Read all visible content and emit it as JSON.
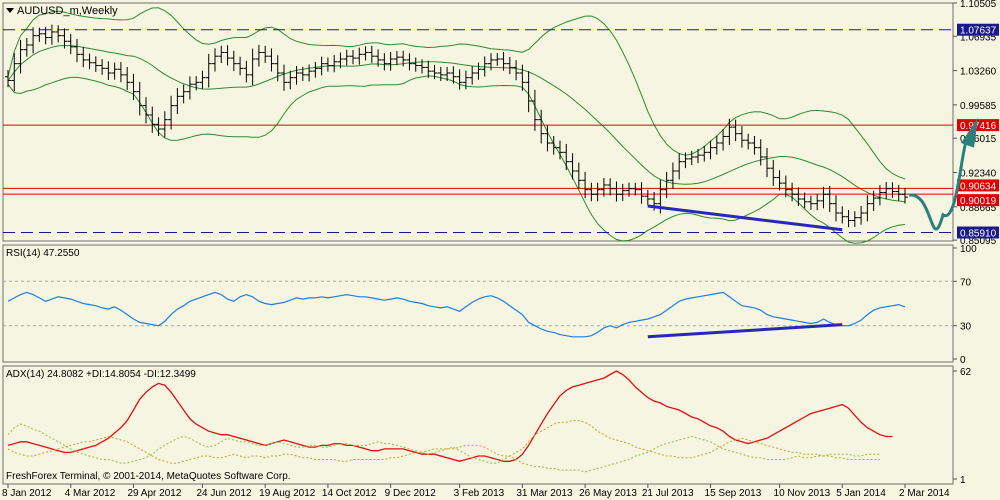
{
  "chart_data": [
    {
      "type": "ohlc",
      "title": "AUDUSD_m,Weekly",
      "symbol": "AUDUSD_m",
      "timeframe": "Weekly",
      "ylim": [
        0.85,
        1.105
      ],
      "y_ticks": [
        "1.10505",
        "1.06935",
        "1.03260",
        "0.99585",
        "0.96015",
        "0.92340",
        "0.88665",
        "0.85095"
      ],
      "x_ticks": [
        "8 Jan 2012",
        "4 Mar 2012",
        "29 Apr 2012",
        "24 Jun 2012",
        "19 Aug 2012",
        "14 Oct 2012",
        "9 Dec 2012",
        "3 Feb 2013",
        "31 Mar 2013",
        "26 May 2013",
        "21 Jul 2013",
        "15 Sep 2013",
        "10 Nov 2013",
        "5 Jan 2014",
        "2 Mar 2014"
      ],
      "levels": [
        {
          "value": 1.07637,
          "label": "1.07637",
          "style": "dashed",
          "color": "#1A1A8C"
        },
        {
          "value": 0.97416,
          "label": "0.97416",
          "style": "solid",
          "color": "#E00000"
        },
        {
          "value": 0.90634,
          "label": "0.90634",
          "style": "solid",
          "color": "#E00000"
        },
        {
          "value": 0.90019,
          "label": "0.90019",
          "style": "solid",
          "color": "#E00000"
        },
        {
          "value": 0.8591,
          "label": "0.85910",
          "style": "dashed",
          "color": "#1A1A8C"
        }
      ],
      "closes": [
        1.022,
        1.04,
        1.055,
        1.06,
        1.07,
        1.072,
        1.068,
        1.074,
        1.07,
        1.064,
        1.058,
        1.05,
        1.044,
        1.041,
        1.038,
        1.035,
        1.03,
        1.034,
        1.028,
        1.02,
        1.01,
        0.995,
        0.985,
        0.975,
        0.97,
        0.98,
        0.995,
        1.005,
        1.01,
        1.018,
        1.02,
        1.025,
        1.04,
        1.048,
        1.052,
        1.046,
        1.04,
        1.035,
        1.028,
        1.045,
        1.052,
        1.048,
        1.04,
        1.03,
        1.02,
        1.025,
        1.03,
        1.028,
        1.032,
        1.035,
        1.04,
        1.038,
        1.042,
        1.045,
        1.048,
        1.046,
        1.05,
        1.052,
        1.048,
        1.044,
        1.04,
        1.045,
        1.047,
        1.044,
        1.04,
        1.038,
        1.036,
        1.032,
        1.03,
        1.028,
        1.03,
        1.026,
        1.02,
        1.025,
        1.03,
        1.034,
        1.04,
        1.044,
        1.045,
        1.04,
        1.036,
        1.03,
        1.02,
        1.0,
        0.98,
        0.965,
        0.955,
        0.95,
        0.945,
        0.935,
        0.925,
        0.915,
        0.905,
        0.9,
        0.905,
        0.91,
        0.906,
        0.9,
        0.904,
        0.906,
        0.905,
        0.898,
        0.895,
        0.89,
        0.905,
        0.915,
        0.925,
        0.935,
        0.938,
        0.94,
        0.942,
        0.945,
        0.95,
        0.955,
        0.962,
        0.972,
        0.965,
        0.958,
        0.955,
        0.95,
        0.94,
        0.928,
        0.918,
        0.912,
        0.905,
        0.9,
        0.895,
        0.892,
        0.89,
        0.893,
        0.9,
        0.89,
        0.88,
        0.876,
        0.872,
        0.875,
        0.88,
        0.89,
        0.896,
        0.902,
        0.906,
        0.903,
        0.9,
        0.897
      ],
      "bollinger": {
        "period_label": "",
        "color": "#2E8B2E"
      },
      "projection": {
        "color": "#2A7F7F",
        "direction": "down-then-up"
      },
      "trendline_price": {
        "from": {
          "x": "21 Jul 2013",
          "y": 0.8875
        },
        "to": {
          "x": "5 Jan 2014",
          "y": 0.862
        },
        "color": "#2828B8"
      }
    },
    {
      "type": "line",
      "title": "RSI(14) 47.2550",
      "ylim": [
        0,
        100
      ],
      "y_ticks": [
        "100",
        "70",
        "30",
        "0"
      ],
      "levels": [
        70,
        30
      ],
      "series": [
        {
          "name": "RSI(14)",
          "color": "#1E7FE0",
          "values": [
            52,
            55,
            58,
            60,
            58,
            55,
            52,
            54,
            56,
            55,
            54,
            52,
            50,
            49,
            48,
            46,
            45,
            47,
            44,
            40,
            36,
            33,
            32,
            31,
            30,
            34,
            40,
            45,
            48,
            52,
            54,
            56,
            58,
            60,
            58,
            54,
            52,
            56,
            58,
            56,
            52,
            50,
            49,
            50,
            51,
            53,
            55,
            54,
            55,
            55,
            56,
            55,
            56,
            57,
            58,
            57,
            56,
            56,
            55,
            54,
            53,
            54,
            55,
            54,
            52,
            51,
            50,
            48,
            47,
            46,
            47,
            45,
            43,
            47,
            51,
            54,
            56,
            57,
            55,
            52,
            48,
            44,
            40,
            33,
            30,
            27,
            25,
            24,
            22,
            21,
            20,
            20,
            20,
            21,
            24,
            28,
            30,
            28,
            31,
            33,
            34,
            35,
            36,
            38,
            40,
            44,
            48,
            52,
            54,
            55,
            56,
            57,
            58,
            59,
            60,
            56,
            52,
            48,
            47,
            46,
            44,
            40,
            38,
            37,
            36,
            35,
            34,
            33,
            32,
            33,
            36,
            33,
            31,
            30,
            30,
            32,
            35,
            40,
            44,
            46,
            47,
            48,
            49,
            47
          ]
        }
      ],
      "trendline": {
        "from": {
          "x": "21 Jul 2013",
          "y": 20
        },
        "to": {
          "x": "5 Jan 2014",
          "y": 31
        },
        "color": "#2828B8"
      }
    },
    {
      "type": "line",
      "title": "ADX(14) 24.8082 +DI:14.8054 -DI:12.3499",
      "ylim": [
        1,
        62
      ],
      "y_ticks": [
        "62",
        "1"
      ],
      "footer": "FreshForex Terminal, © 2001-2014, MetaQuotes Software Corp.",
      "series": [
        {
          "name": "ADX(14)",
          "color": "#E01010",
          "style": "solid",
          "values": [
            20,
            21,
            22,
            22,
            21,
            20,
            19,
            18,
            17,
            16,
            16,
            17,
            18,
            19,
            20,
            22,
            24,
            27,
            30,
            34,
            40,
            46,
            50,
            53,
            55,
            54,
            50,
            45,
            40,
            35,
            32,
            30,
            28,
            27,
            26,
            26,
            25,
            24,
            23,
            22,
            21,
            20,
            21,
            22,
            23,
            22,
            21,
            20,
            19,
            19,
            20,
            20,
            21,
            21,
            20,
            20,
            19,
            18,
            17,
            17,
            18,
            18,
            18,
            18,
            17,
            16,
            15,
            15,
            15,
            14,
            13,
            12,
            11,
            12,
            13,
            14,
            14,
            13,
            12,
            11,
            11,
            12,
            15,
            20,
            26,
            32,
            38,
            43,
            48,
            51,
            53,
            54,
            55,
            56,
            57,
            58,
            60,
            62,
            60,
            57,
            53,
            50,
            47,
            45,
            44,
            42,
            41,
            40,
            38,
            36,
            35,
            33,
            31,
            30,
            28,
            25,
            23,
            22,
            21,
            22,
            23,
            24,
            26,
            28,
            30,
            32,
            34,
            36,
            38,
            39,
            40,
            41,
            42,
            43,
            41,
            37,
            33,
            30,
            28,
            26,
            25,
            25
          ]
        },
        {
          "name": "+DI",
          "color": "#8FBF3F",
          "style": "dotted",
          "values": [
            26,
            30,
            32,
            31,
            29,
            28,
            26,
            24,
            22,
            20,
            18,
            16,
            15,
            14,
            13,
            12,
            12,
            11,
            10,
            10,
            11,
            12,
            13,
            15,
            18,
            20,
            22,
            24,
            25,
            24,
            22,
            20,
            19,
            20,
            22,
            24,
            23,
            22,
            22,
            21,
            20,
            20,
            21,
            22,
            21,
            20,
            19,
            19,
            20,
            20,
            19,
            19,
            20,
            21,
            21,
            20,
            20,
            20,
            21,
            22,
            21,
            21,
            20,
            19,
            18,
            17,
            16,
            15,
            16,
            17,
            18,
            19,
            17,
            15,
            13,
            12,
            11,
            10,
            10,
            12,
            14,
            12,
            10,
            9,
            8,
            8,
            7,
            7,
            6,
            6,
            6,
            6,
            5,
            6,
            7,
            8,
            9,
            10,
            11,
            12,
            14,
            15,
            16,
            18,
            20,
            21,
            22,
            23,
            24,
            25,
            24,
            23,
            22,
            20,
            18,
            17,
            16,
            15,
            14,
            13,
            13,
            12,
            12,
            12,
            12,
            13,
            14,
            13,
            13,
            14,
            14,
            15,
            15,
            15,
            15,
            14,
            14,
            15,
            15,
            15
          ]
        },
        {
          "name": "-DI",
          "color": "#C9A020",
          "style": "dotted",
          "values": [
            18,
            16,
            15,
            14,
            14,
            15,
            16,
            17,
            18,
            19,
            20,
            21,
            22,
            22,
            23,
            24,
            25,
            24,
            23,
            22,
            20,
            18,
            16,
            14,
            12,
            11,
            10,
            10,
            11,
            12,
            13,
            14,
            14,
            13,
            13,
            14,
            15,
            14,
            13,
            14,
            14,
            13,
            14,
            14,
            15,
            15,
            14,
            13,
            13,
            12,
            12,
            12,
            12,
            11,
            11,
            12,
            12,
            12,
            12,
            12,
            12,
            13,
            13,
            14,
            15,
            16,
            16,
            17,
            18,
            18,
            18,
            18,
            19,
            20,
            20,
            20,
            19,
            17,
            15,
            14,
            14,
            16,
            18,
            22,
            26,
            28,
            30,
            32,
            33,
            33,
            34,
            34,
            33,
            31,
            28,
            26,
            24,
            23,
            22,
            21,
            19,
            18,
            17,
            16,
            15,
            14,
            14,
            13,
            13,
            13,
            14,
            15,
            16,
            18,
            20,
            22,
            23,
            24,
            23,
            22,
            21,
            20,
            19,
            18,
            17,
            16,
            16,
            15,
            15,
            15,
            14,
            14,
            13,
            13,
            12,
            12,
            12,
            12,
            12,
            12
          ]
        }
      ]
    }
  ],
  "ui": {
    "price_title": "AUDUSD_m,Weekly",
    "rsi_title": "RSI(14) 47.2550",
    "adx_title": "ADX(14) 24.8082 +DI:14.8054 -DI:12.3499",
    "footer": "FreshForex Terminal, © 2001-2014, MetaQuotes Software Corp."
  }
}
